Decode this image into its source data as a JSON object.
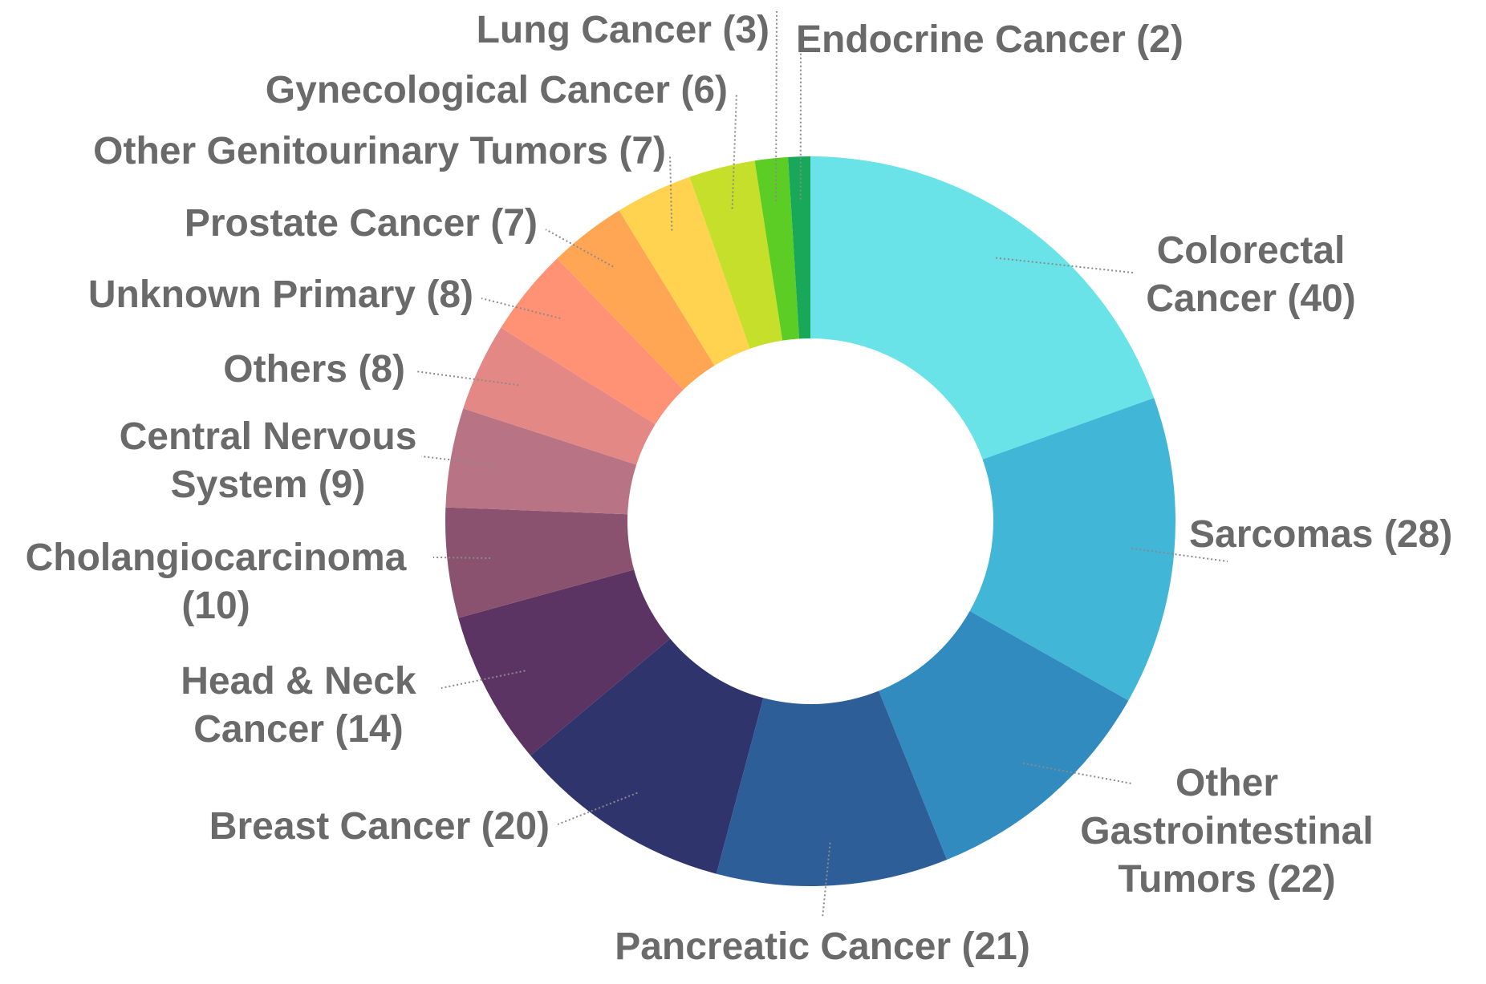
{
  "chart_data": {
    "type": "donut",
    "categories": [
      "Colorectal Cancer",
      "Sarcomas",
      "Other Gastrointestinal Tumors",
      "Pancreatic Cancer",
      "Breast Cancer",
      "Head & Neck Cancer",
      "Cholangiocarcinoma",
      "Central Nervous System",
      "Others",
      "Unknown Primary",
      "Prostate Cancer",
      "Other Genitourinary Tumors",
      "Gynecological Cancer",
      "Lung Cancer",
      "Endocrine Cancer"
    ],
    "values": [
      40,
      28,
      22,
      21,
      20,
      14,
      10,
      9,
      8,
      8,
      7,
      7,
      6,
      3,
      2
    ],
    "value_labels": [
      "(40)",
      "(28)",
      "(22)",
      "(21)",
      "(20)",
      "(14)",
      "(10)",
      "(9)",
      "(8)",
      "(8)",
      "(7)",
      "(7)",
      "(6)",
      "(3)",
      "(2)"
    ],
    "colors": [
      "#6ae3e8",
      "#41b6d6",
      "#318bbf",
      "#2d5e98",
      "#2f346c",
      "#5c3463",
      "#8a526f",
      "#b87384",
      "#e38885",
      "#ff9275",
      "#ffa655",
      "#ffd24f",
      "#c6df2a",
      "#5ccd24",
      "#19a85a"
    ]
  }
}
